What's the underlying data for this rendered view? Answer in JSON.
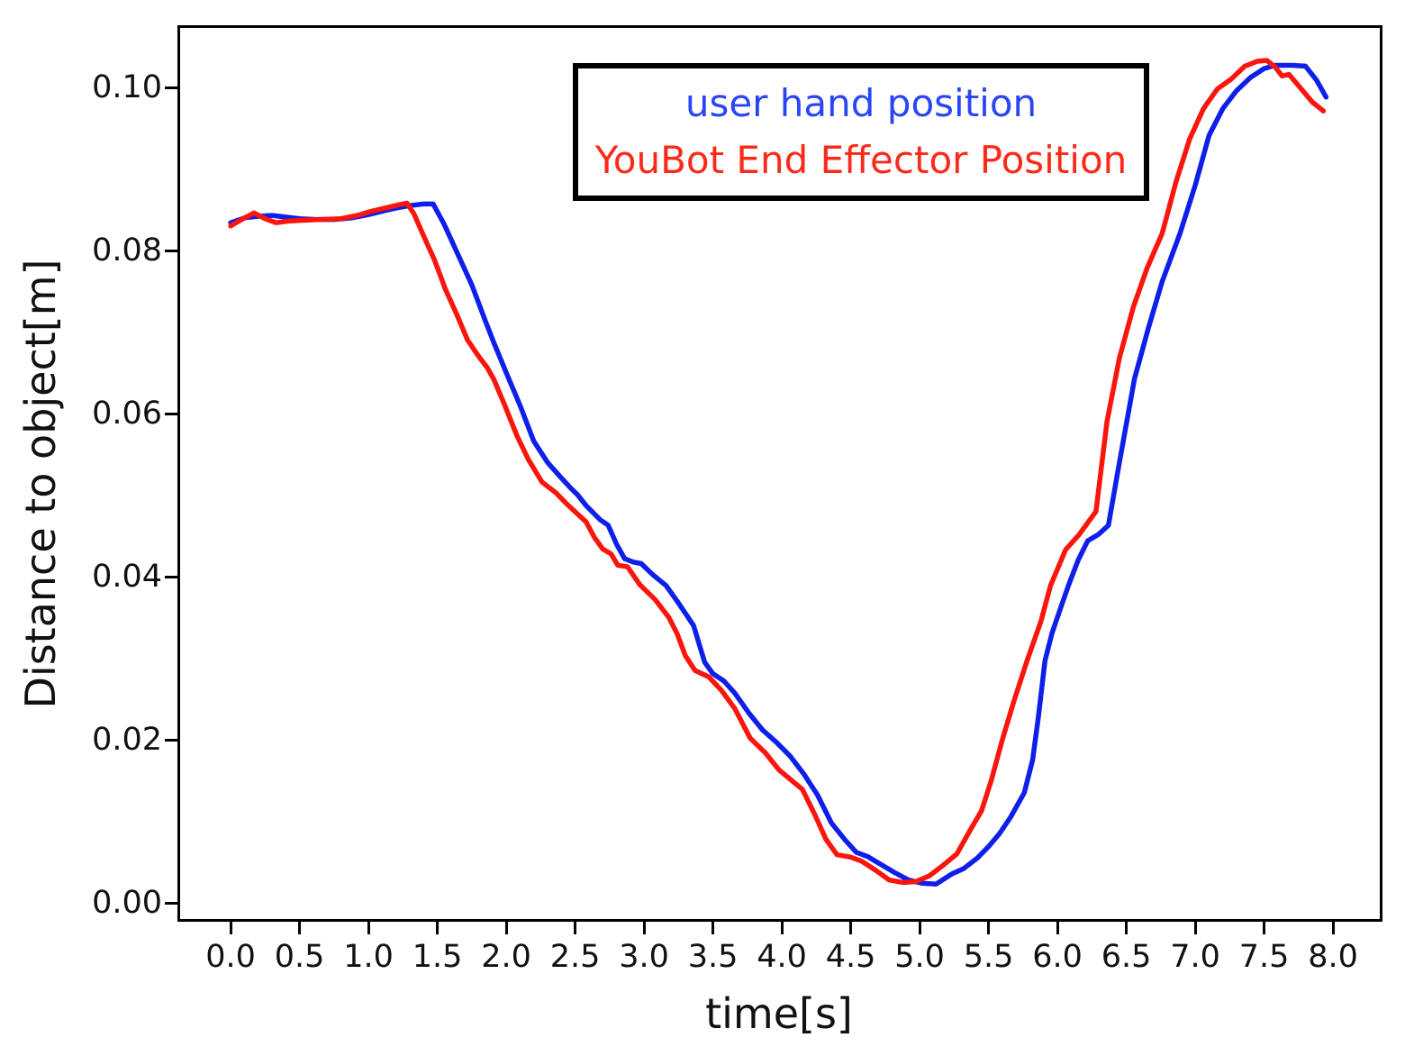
{
  "figure": {
    "background": "#ffffff"
  },
  "chart_data": {
    "type": "line",
    "title": "",
    "xlabel": "time[s]",
    "ylabel": "Distance to object[m]",
    "xlim": [
      -0.386,
      8.359
    ],
    "ylim": [
      -0.00232,
      0.10762
    ],
    "grid": false,
    "legend_position": "upper center",
    "line_width": 5.5,
    "x_ticks": {
      "values": [
        0.0,
        0.5,
        1.0,
        1.5,
        2.0,
        2.5,
        3.0,
        3.5,
        4.0,
        4.5,
        5.0,
        5.5,
        6.0,
        6.5,
        7.0,
        7.5,
        8.0
      ],
      "labels": [
        "0.0",
        "0.5",
        "1.0",
        "1.5",
        "2.0",
        "2.5",
        "3.0",
        "3.5",
        "4.0",
        "4.5",
        "5.0",
        "5.5",
        "6.0",
        "6.5",
        "7.0",
        "7.5",
        "8.0"
      ]
    },
    "y_ticks": {
      "values": [
        0.0,
        0.02,
        0.04,
        0.06,
        0.08,
        0.1
      ],
      "labels": [
        "0.00",
        "0.02",
        "0.04",
        "0.06",
        "0.08",
        "0.10"
      ]
    },
    "legend": [
      {
        "label": "user hand position",
        "color": "#2946f5"
      },
      {
        "label": "YouBot End Effector Position",
        "color": "#fd2a1a"
      }
    ],
    "series": [
      {
        "name": "user hand position",
        "color": "#0e1fe9",
        "points": [
          [
            0.0,
            0.0834
          ],
          [
            0.1,
            0.084
          ],
          [
            0.2,
            0.0842
          ],
          [
            0.3,
            0.0843
          ],
          [
            0.4,
            0.0841
          ],
          [
            0.5,
            0.0839
          ],
          [
            0.62,
            0.0838
          ],
          [
            0.75,
            0.0838
          ],
          [
            0.88,
            0.084
          ],
          [
            1.0,
            0.0844
          ],
          [
            1.1,
            0.0848
          ],
          [
            1.2,
            0.0852
          ],
          [
            1.3,
            0.0855
          ],
          [
            1.4,
            0.0857
          ],
          [
            1.47,
            0.0857
          ],
          [
            1.55,
            0.0832
          ],
          [
            1.65,
            0.0795
          ],
          [
            1.75,
            0.0758
          ],
          [
            1.85,
            0.0713
          ],
          [
            1.91,
            0.0687
          ],
          [
            2.0,
            0.065
          ],
          [
            2.1,
            0.061
          ],
          [
            2.2,
            0.0566
          ],
          [
            2.3,
            0.054
          ],
          [
            2.4,
            0.0521
          ],
          [
            2.46,
            0.051
          ],
          [
            2.52,
            0.05
          ],
          [
            2.58,
            0.0487
          ],
          [
            2.68,
            0.047
          ],
          [
            2.74,
            0.0463
          ],
          [
            2.8,
            0.044
          ],
          [
            2.86,
            0.0422
          ],
          [
            2.92,
            0.0418
          ],
          [
            2.98,
            0.0416
          ],
          [
            3.06,
            0.0403
          ],
          [
            3.16,
            0.0389
          ],
          [
            3.24,
            0.037
          ],
          [
            3.3,
            0.0355
          ],
          [
            3.36,
            0.034
          ],
          [
            3.44,
            0.0295
          ],
          [
            3.5,
            0.0281
          ],
          [
            3.58,
            0.0272
          ],
          [
            3.66,
            0.0257
          ],
          [
            3.76,
            0.0233
          ],
          [
            3.86,
            0.0212
          ],
          [
            3.96,
            0.0197
          ],
          [
            4.06,
            0.018
          ],
          [
            4.16,
            0.0158
          ],
          [
            4.26,
            0.0132
          ],
          [
            4.36,
            0.0098
          ],
          [
            4.46,
            0.0077
          ],
          [
            4.54,
            0.0062
          ],
          [
            4.62,
            0.0057
          ],
          [
            4.72,
            0.0047
          ],
          [
            4.82,
            0.0037
          ],
          [
            4.92,
            0.0028
          ],
          [
            5.02,
            0.0024
          ],
          [
            5.12,
            0.0023
          ],
          [
            5.23,
            0.0035
          ],
          [
            5.32,
            0.0042
          ],
          [
            5.42,
            0.0055
          ],
          [
            5.5,
            0.0069
          ],
          [
            5.58,
            0.0085
          ],
          [
            5.66,
            0.0105
          ],
          [
            5.76,
            0.0135
          ],
          [
            5.82,
            0.0175
          ],
          [
            5.86,
            0.0225
          ],
          [
            5.91,
            0.0297
          ],
          [
            5.96,
            0.033
          ],
          [
            6.02,
            0.036
          ],
          [
            6.08,
            0.0389
          ],
          [
            6.15,
            0.042
          ],
          [
            6.22,
            0.0444
          ],
          [
            6.3,
            0.0452
          ],
          [
            6.37,
            0.0463
          ],
          [
            6.45,
            0.054
          ],
          [
            6.56,
            0.0643
          ],
          [
            6.66,
            0.0705
          ],
          [
            6.76,
            0.0762
          ],
          [
            6.89,
            0.0821
          ],
          [
            7.0,
            0.088
          ],
          [
            7.1,
            0.0941
          ],
          [
            7.2,
            0.0974
          ],
          [
            7.3,
            0.0996
          ],
          [
            7.4,
            0.1012
          ],
          [
            7.5,
            0.1023
          ],
          [
            7.58,
            0.1027
          ],
          [
            7.7,
            0.1027
          ],
          [
            7.8,
            0.1026
          ],
          [
            7.88,
            0.1009
          ],
          [
            7.95,
            0.0988
          ]
        ]
      },
      {
        "name": "YouBot End Effector Position",
        "color": "#fb150d",
        "points": [
          [
            0.0,
            0.083
          ],
          [
            0.08,
            0.0838
          ],
          [
            0.17,
            0.0846
          ],
          [
            0.25,
            0.0839
          ],
          [
            0.33,
            0.0834
          ],
          [
            0.42,
            0.0836
          ],
          [
            0.52,
            0.0837
          ],
          [
            0.65,
            0.0838
          ],
          [
            0.8,
            0.0839
          ],
          [
            0.92,
            0.0843
          ],
          [
            1.02,
            0.0848
          ],
          [
            1.12,
            0.0852
          ],
          [
            1.22,
            0.0856
          ],
          [
            1.28,
            0.0858
          ],
          [
            1.33,
            0.0845
          ],
          [
            1.4,
            0.0818
          ],
          [
            1.48,
            0.0788
          ],
          [
            1.56,
            0.0752
          ],
          [
            1.64,
            0.0722
          ],
          [
            1.72,
            0.069
          ],
          [
            1.8,
            0.067
          ],
          [
            1.86,
            0.0657
          ],
          [
            1.91,
            0.0642
          ],
          [
            1.99,
            0.061
          ],
          [
            2.08,
            0.0572
          ],
          [
            2.16,
            0.0544
          ],
          [
            2.26,
            0.0516
          ],
          [
            2.36,
            0.0503
          ],
          [
            2.44,
            0.0489
          ],
          [
            2.51,
            0.0478
          ],
          [
            2.58,
            0.0467
          ],
          [
            2.64,
            0.0448
          ],
          [
            2.7,
            0.0434
          ],
          [
            2.76,
            0.0428
          ],
          [
            2.81,
            0.0414
          ],
          [
            2.88,
            0.0412
          ],
          [
            2.97,
            0.039
          ],
          [
            3.08,
            0.0372
          ],
          [
            3.18,
            0.035
          ],
          [
            3.24,
            0.033
          ],
          [
            3.3,
            0.0303
          ],
          [
            3.37,
            0.0285
          ],
          [
            3.47,
            0.0277
          ],
          [
            3.56,
            0.0261
          ],
          [
            3.66,
            0.0238
          ],
          [
            3.77,
            0.0202
          ],
          [
            3.88,
            0.0184
          ],
          [
            3.98,
            0.0163
          ],
          [
            4.08,
            0.0149
          ],
          [
            4.15,
            0.0139
          ],
          [
            4.24,
            0.0108
          ],
          [
            4.32,
            0.0078
          ],
          [
            4.4,
            0.0059
          ],
          [
            4.5,
            0.0056
          ],
          [
            4.58,
            0.0051
          ],
          [
            4.68,
            0.004
          ],
          [
            4.78,
            0.0028
          ],
          [
            4.88,
            0.0025
          ],
          [
            4.97,
            0.0026
          ],
          [
            5.07,
            0.0033
          ],
          [
            5.17,
            0.0046
          ],
          [
            5.27,
            0.006
          ],
          [
            5.37,
            0.009
          ],
          [
            5.45,
            0.0113
          ],
          [
            5.52,
            0.015
          ],
          [
            5.6,
            0.02
          ],
          [
            5.68,
            0.0245
          ],
          [
            5.78,
            0.0297
          ],
          [
            5.88,
            0.0345
          ],
          [
            5.95,
            0.0389
          ],
          [
            6.06,
            0.0433
          ],
          [
            6.16,
            0.0452
          ],
          [
            6.28,
            0.048
          ],
          [
            6.36,
            0.059
          ],
          [
            6.45,
            0.0668
          ],
          [
            6.55,
            0.073
          ],
          [
            6.65,
            0.0778
          ],
          [
            6.76,
            0.0821
          ],
          [
            6.86,
            0.0884
          ],
          [
            6.96,
            0.0937
          ],
          [
            7.06,
            0.0974
          ],
          [
            7.16,
            0.0998
          ],
          [
            7.26,
            0.101
          ],
          [
            7.36,
            0.1026
          ],
          [
            7.45,
            0.1032
          ],
          [
            7.52,
            0.1033
          ],
          [
            7.58,
            0.1025
          ],
          [
            7.63,
            0.1014
          ],
          [
            7.68,
            0.1016
          ],
          [
            7.76,
            0.1
          ],
          [
            7.85,
            0.0982
          ],
          [
            7.93,
            0.0971
          ]
        ]
      }
    ]
  }
}
